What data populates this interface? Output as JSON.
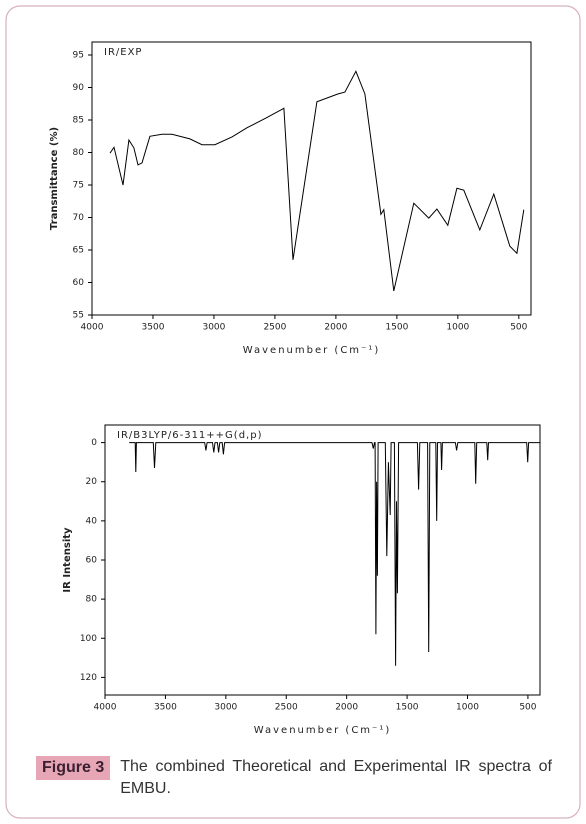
{
  "chart_data": [
    {
      "type": "line",
      "annotation": "IR/EXP",
      "x_label": "Wavenumber (Cm⁻¹)",
      "y_label": "Transmittance (%)",
      "color": "#000000",
      "xlim": [
        4000,
        400
      ],
      "ylim": [
        55,
        97
      ],
      "xticks": [
        4000,
        3500,
        3000,
        2500,
        2000,
        1500,
        1000,
        500
      ],
      "yticks": [
        55,
        60,
        65,
        70,
        75,
        80,
        85,
        90,
        95
      ],
      "x": [
        3852,
        3820,
        3746,
        3697,
        3656,
        3623,
        3590,
        3525,
        3426,
        3344,
        3197,
        3098,
        2992,
        2852,
        2730,
        2574,
        2426,
        2352,
        2156,
        1984,
        1926,
        1836,
        1762,
        1631,
        1607,
        1525,
        1361,
        1238,
        1172,
        1082,
        1008,
        951,
        820,
        705,
        574,
        516,
        459
      ],
      "values": [
        79.9,
        80.8,
        75,
        81.9,
        80.7,
        78.1,
        78.4,
        82.5,
        82.8,
        82.8,
        82.1,
        81.2,
        81.2,
        82.4,
        83.8,
        85.3,
        86.8,
        63.5,
        87.8,
        89,
        89.3,
        92.5,
        89,
        70.5,
        71.2,
        58.7,
        72.2,
        69.9,
        71.3,
        68.8,
        74.5,
        74.2,
        68.1,
        73.6,
        65.6,
        64.5,
        71.2
      ]
    },
    {
      "type": "line",
      "annotation": "IR/B3LYP/6-311++G(d,p)",
      "x_label": "Wavenumber (Cm⁻¹)",
      "y_label": "IR Intensity",
      "color": "#000000",
      "xlim": [
        4000,
        400
      ],
      "ylim": [
        -9,
        129
      ],
      "invert_y": true,
      "xticks": [
        4000,
        3500,
        3000,
        2500,
        2000,
        1500,
        1000,
        500
      ],
      "yticks": [
        0,
        20,
        40,
        60,
        80,
        100,
        120
      ],
      "x": [
        3800,
        3750,
        3745,
        3740,
        3600,
        3590,
        3580,
        3175,
        3165,
        3155,
        3110,
        3100,
        3090,
        3070,
        3060,
        3050,
        3030,
        3020,
        3010,
        1790,
        1780,
        1770,
        1765,
        1758,
        1752,
        1746,
        1740,
        1680,
        1668,
        1655,
        1640,
        1632,
        1605,
        1595,
        1588,
        1580,
        1570,
        1415,
        1405,
        1395,
        1330,
        1321,
        1312,
        1262,
        1255,
        1248,
        1220,
        1214,
        1208,
        1100,
        1090,
        1080,
        940,
        932,
        924,
        840,
        833,
        826,
        510,
        502,
        494,
        400
      ],
      "values": [
        0,
        0,
        15,
        0,
        0,
        13,
        0,
        0,
        4,
        0,
        0,
        5,
        0,
        0,
        5,
        0,
        0,
        6,
        0,
        0,
        3,
        0,
        0,
        98,
        20,
        68,
        0,
        0,
        58,
        10,
        37,
        0,
        0,
        114,
        30,
        77,
        0,
        0,
        24,
        0,
        0,
        107,
        0,
        0,
        40,
        0,
        0,
        14,
        0,
        0,
        4,
        0,
        0,
        21,
        0,
        0,
        9,
        0,
        0,
        10,
        0,
        0
      ]
    }
  ],
  "caption": {
    "label": "Figure 3",
    "text": "The combined Theoretical and Experimental IR spectra of EMBU."
  }
}
